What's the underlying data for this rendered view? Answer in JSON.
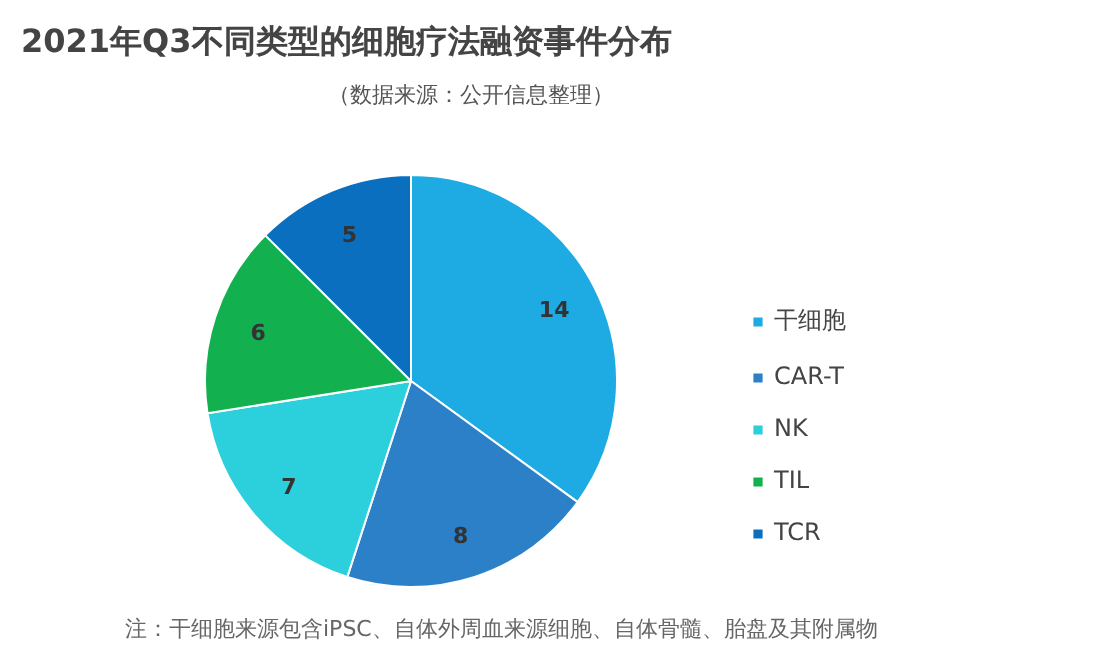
{
  "chart_data": {
    "type": "pie",
    "title": "2021年Q3不同类型的细胞疗法融资事件分布",
    "subtitle": "（数据来源：公开信息整理）",
    "categories": [
      "干细胞",
      "CAR-T",
      "NK",
      "TIL",
      "TCR"
    ],
    "values": [
      14,
      8,
      7,
      6,
      5
    ],
    "colors": [
      "#1eaae2",
      "#2b80c8",
      "#2bd0dc",
      "#12b04e",
      "#0b6fc0"
    ],
    "data_labels": true,
    "legend": "right",
    "annotations": [
      "注：干细胞来源包含iPSC、自体外周血来源细胞、自体骨髓、胎盘及其附属物"
    ]
  }
}
